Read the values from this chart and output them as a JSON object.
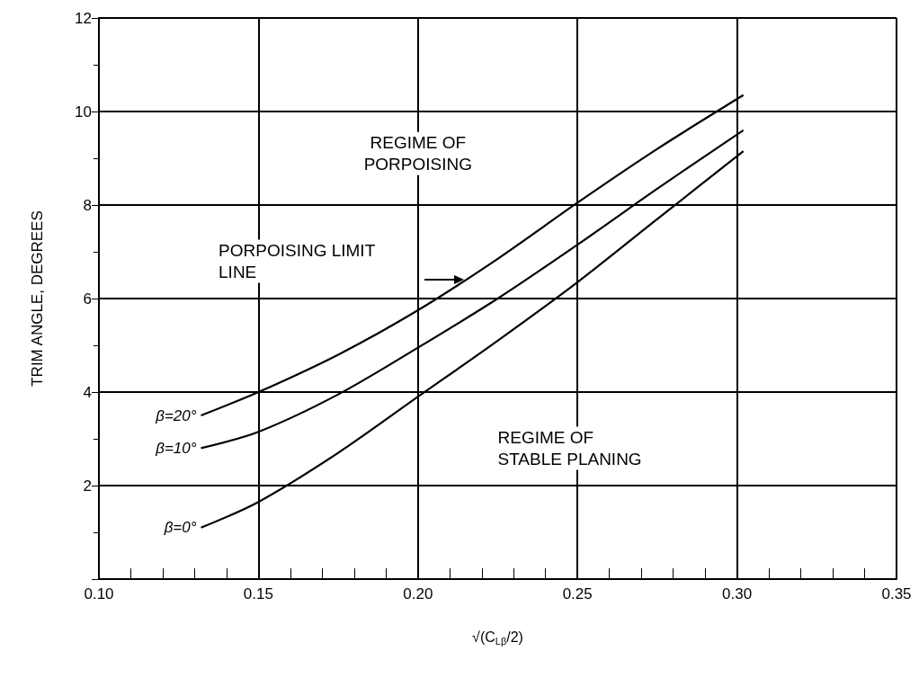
{
  "chart_data": {
    "type": "line",
    "xlabel": "√(C$_{Lβ}$/2)",
    "ylabel": "TRIM ANGLE, DEGREES",
    "x": [
      0.132,
      0.15,
      0.175,
      0.2,
      0.225,
      0.25,
      0.275,
      0.302
    ],
    "series": [
      {
        "name": "β=20°",
        "color": "#000000",
        "values": [
          3.5,
          4.0,
          4.8,
          5.75,
          6.85,
          8.05,
          9.2,
          10.35
        ]
      },
      {
        "name": "β=10°",
        "color": "#000000",
        "values": [
          2.8,
          3.15,
          3.95,
          4.95,
          6.0,
          7.15,
          8.35,
          9.6
        ]
      },
      {
        "name": "β=0°",
        "color": "#000000",
        "values": [
          1.1,
          1.65,
          2.7,
          3.9,
          5.1,
          6.35,
          7.7,
          9.15
        ]
      }
    ],
    "xlim": [
      0.1,
      0.35
    ],
    "xticks": [
      {
        "value": 0.1,
        "label": "0.10"
      },
      {
        "value": 0.15,
        "label": "0.15"
      },
      {
        "value": 0.2,
        "label": "0.20"
      },
      {
        "value": 0.25,
        "label": "0.25"
      },
      {
        "value": 0.3,
        "label": "0.30"
      },
      {
        "value": 0.35,
        "label": "0.35"
      }
    ],
    "ylim": [
      0,
      12
    ],
    "yticks": [
      {
        "value": 0,
        "label": null
      },
      2,
      4,
      6,
      8,
      10,
      12
    ],
    "annotations": [
      "REGIME OF\nPORPOISING",
      "PORPOISING LIMIT\nLINE",
      "REGIME OF\nSTABLE PLANING"
    ],
    "grid": true,
    "legend": false,
    "marker": "none",
    "line_style": "solid"
  }
}
